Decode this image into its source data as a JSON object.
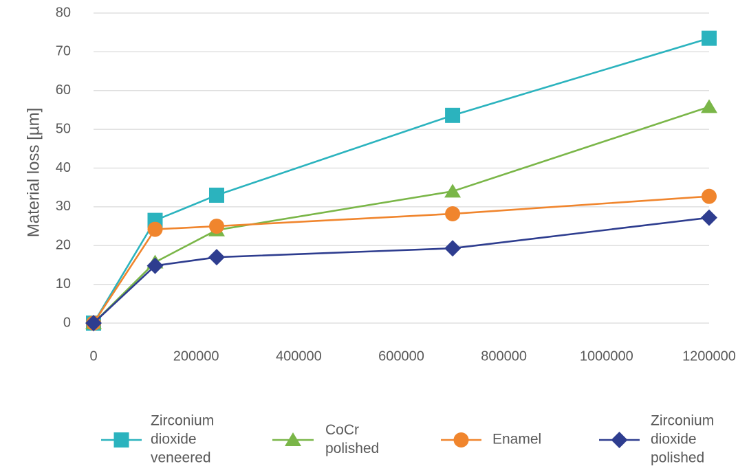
{
  "chart_data": {
    "type": "scatter",
    "title": "",
    "xlabel": "",
    "ylabel": "Material loss [µm]",
    "xlim": [
      0,
      1200000
    ],
    "ylim": [
      0,
      80
    ],
    "x_ticks": [
      0,
      200000,
      400000,
      600000,
      800000,
      1000000,
      1200000
    ],
    "x_tick_labels": [
      "0",
      "200000",
      "400000",
      "600000",
      "800000",
      "1000000",
      "1200000"
    ],
    "y_ticks": [
      0,
      10,
      20,
      30,
      40,
      50,
      60,
      70,
      80
    ],
    "y_tick_labels": [
      "0",
      "10",
      "20",
      "30",
      "40",
      "50",
      "60",
      "70",
      "80"
    ],
    "grid": "horizontal",
    "legend_position": "bottom",
    "series": [
      {
        "name": "Zirconium dioxide veneered",
        "legend_lines": [
          "Zirconium",
          "dioxide",
          "veneered"
        ],
        "color": "#2BB3BE",
        "marker": "square",
        "x": [
          0,
          120000,
          240000,
          700000,
          1200000
        ],
        "y": [
          0,
          26.5,
          33,
          53.6,
          73.5
        ]
      },
      {
        "name": "CoCr polished",
        "legend_lines": [
          "CoCr",
          "polished"
        ],
        "color": "#7AB648",
        "marker": "triangle",
        "x": [
          0,
          120000,
          240000,
          700000,
          1200000
        ],
        "y": [
          0,
          15.7,
          24,
          34,
          55.8
        ]
      },
      {
        "name": "Enamel",
        "legend_lines": [
          "Enamel"
        ],
        "color": "#F0852D",
        "marker": "circle",
        "x": [
          0,
          120000,
          240000,
          700000,
          1200000
        ],
        "y": [
          0,
          24.2,
          25,
          28.2,
          32.7
        ]
      },
      {
        "name": "Zirconium dioxide polished",
        "legend_lines": [
          "Zirconium",
          "dioxide",
          "polished"
        ],
        "color": "#2E3D8F",
        "marker": "diamond",
        "x": [
          0,
          120000,
          240000,
          700000,
          1200000
        ],
        "y": [
          0,
          14.8,
          17,
          19.3,
          27.2
        ]
      }
    ]
  }
}
